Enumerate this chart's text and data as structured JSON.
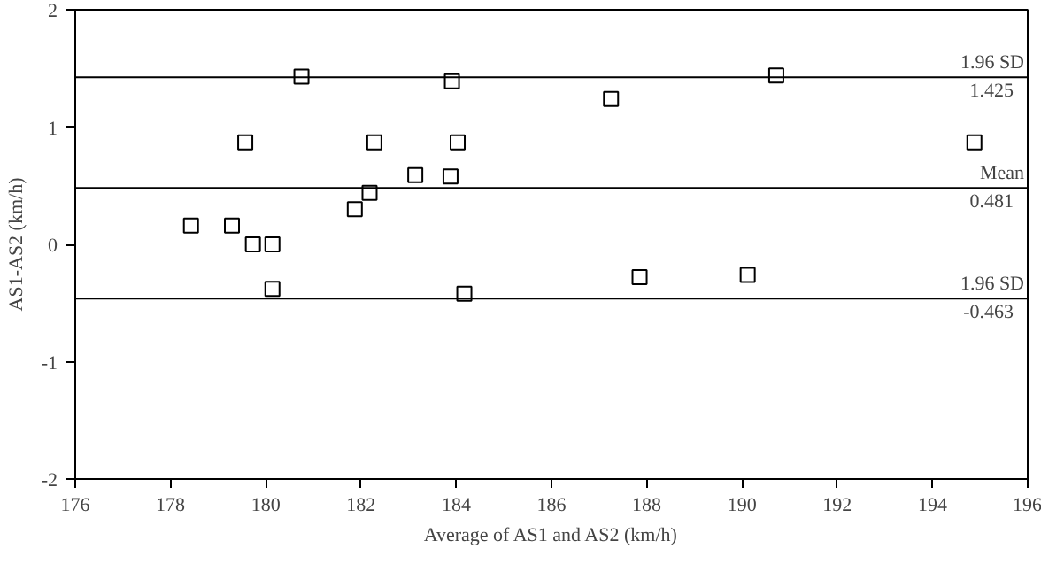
{
  "chart_data": {
    "type": "scatter",
    "xlabel": "Average of AS1 and AS2 (km/h)",
    "ylabel": "AS1-AS2 (km/h)",
    "xlim": [
      176,
      196
    ],
    "xticks": [
      176,
      178,
      180,
      182,
      184,
      186,
      188,
      190,
      192,
      194,
      196
    ],
    "ylim": [
      -2,
      2
    ],
    "yticks": [
      -2,
      -1,
      0,
      1,
      2
    ],
    "grid": false,
    "marker": "square",
    "series": [
      {
        "color": "#000000",
        "x": [
          180.75,
          183.91,
          179.57,
          182.28,
          184.03,
          183.14,
          183.88,
          182.18,
          181.87,
          178.43,
          179.29,
          179.73,
          180.14,
          180.14,
          184.17,
          187.25,
          190.72,
          194.88,
          187.85,
          190.12
        ],
        "values": [
          1.43,
          1.39,
          0.87,
          0.87,
          0.87,
          0.59,
          0.58,
          0.44,
          0.3,
          0.16,
          0.16,
          0.0,
          0.0,
          -0.38,
          -0.42,
          1.24,
          1.44,
          0.87,
          -0.28,
          -0.26
        ]
      }
    ],
    "ref_lines": [
      {
        "axis": "y",
        "value": 1.425,
        "label": "1.96 SD",
        "color": "#000000"
      },
      {
        "axis": "y",
        "value": 0.481,
        "label": "Mean",
        "color": "#000000"
      },
      {
        "axis": "y",
        "value": -0.463,
        "label": "1.96 SD",
        "color": "#000000"
      }
    ],
    "annotations": [
      "1.425",
      "0.481",
      "-0.463"
    ]
  }
}
